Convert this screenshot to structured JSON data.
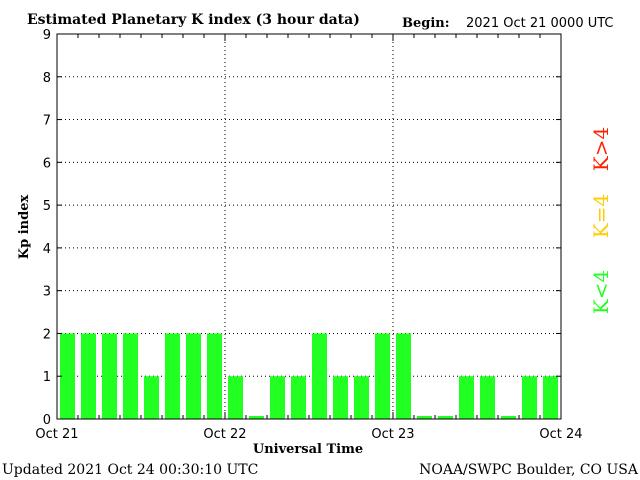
{
  "header": {
    "title": "Estimated Planetary K index (3 hour data)",
    "begin_label": "Begin:",
    "begin_value": "2021 Oct 21 0000 UTC"
  },
  "footer": {
    "updated": "Updated 2021 Oct 24 00:30:10 UTC",
    "source": "NOAA/SWPC Boulder, CO USA"
  },
  "legend": {
    "above": "K>4",
    "equal": "K=4",
    "below": "K<4"
  },
  "colors": {
    "below": "#22ff22",
    "equal": "#ffcc00",
    "above": "#ff2200",
    "axis": "#000000"
  },
  "chart_data": {
    "type": "bar",
    "title": "Estimated Planetary K index (3 hour data)",
    "xlabel": "Universal Time",
    "ylabel": "Kp index",
    "ylim": [
      0,
      9
    ],
    "yticks": [
      "0",
      "1",
      "2",
      "3",
      "4",
      "5",
      "6",
      "7",
      "8",
      "9"
    ],
    "xticks": [
      "Oct 21",
      "Oct 22",
      "Oct 23",
      "Oct 24"
    ],
    "grid": "dotted",
    "interval_hours": 3,
    "values": [
      2,
      2,
      2,
      2,
      1,
      2,
      2,
      2,
      1,
      0.07,
      1,
      1,
      2,
      1,
      1,
      2,
      2,
      0.07,
      0.07,
      1,
      1,
      0.07,
      1,
      1
    ]
  }
}
